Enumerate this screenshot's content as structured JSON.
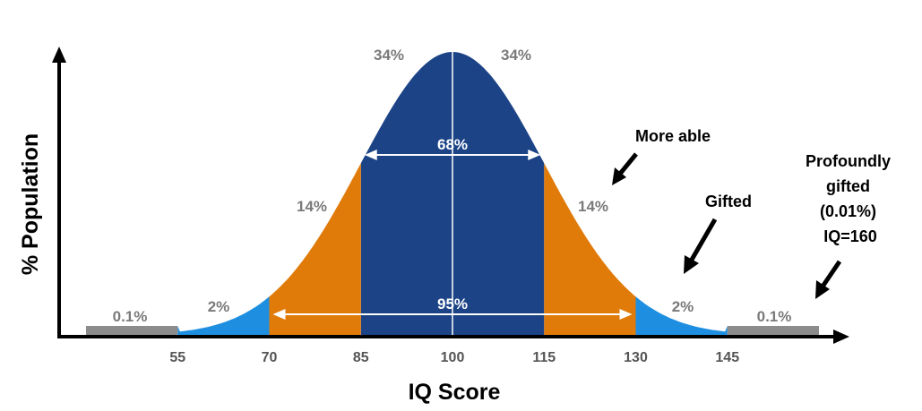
{
  "chart_data": {
    "type": "area",
    "title": "",
    "xlabel": "IQ Score",
    "ylabel": "% Population",
    "mean": 100,
    "sd": 15,
    "xlim": [
      40,
      160
    ],
    "x_ticks": [
      "55",
      "70",
      "85",
      "100",
      "115",
      "130",
      "145"
    ],
    "x_tick_values": [
      55,
      70,
      85,
      100,
      115,
      130,
      145
    ],
    "colors": {
      "center": "#1b4386",
      "mid": "#e07b0a",
      "tail": "#1e8fe0",
      "extreme": "#8c8c8c",
      "axis": "#000000"
    },
    "bands": [
      {
        "from": 85,
        "to": 100,
        "color": "#1b4386"
      },
      {
        "from": 100,
        "to": 115,
        "color": "#1b4386"
      },
      {
        "from": 70,
        "to": 85,
        "color": "#e07b0a"
      },
      {
        "from": 115,
        "to": 130,
        "color": "#e07b0a"
      },
      {
        "from": 55,
        "to": 70,
        "color": "#1e8fe0"
      },
      {
        "from": 130,
        "to": 145,
        "color": "#1e8fe0"
      },
      {
        "from": 40,
        "to": 55,
        "color": "#8c8c8c"
      },
      {
        "from": 145,
        "to": 160,
        "color": "#8c8c8c"
      }
    ],
    "band_labels": {
      "left_center": "34%",
      "right_center": "34%",
      "left_mid": "14%",
      "right_mid": "14%",
      "left_tail": "2%",
      "right_tail": "2%",
      "left_extreme": "0.1%",
      "right_extreme": "0.1%"
    },
    "spans": [
      {
        "label": "68%",
        "from": 85,
        "to": 115
      },
      {
        "label": "95%",
        "from": 70,
        "to": 130
      }
    ],
    "annotations": [
      {
        "id": "more-able",
        "lines": [
          "More able"
        ]
      },
      {
        "id": "gifted",
        "lines": [
          "Gifted"
        ]
      },
      {
        "id": "profoundly-gifted",
        "lines": [
          "Profoundly",
          "gifted",
          "(0.01%)",
          "IQ=160"
        ]
      }
    ]
  }
}
